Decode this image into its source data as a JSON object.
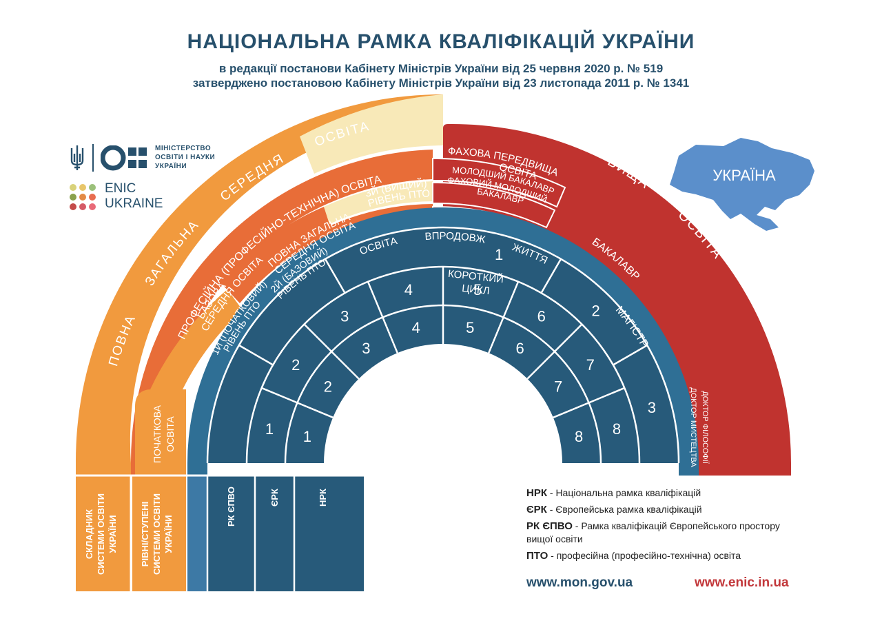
{
  "title": "НАЦІОНАЛЬНА РАМКА КВАЛІФІКАЦІЙ УКРАЇНИ",
  "subtitle1": "в редакції постанови Кабінету Міністрів України від 25 червня 2020 р. № 519",
  "subtitle2": "затверджено постановою Кабінету Міністрів України від 23 листопада 2011 р. № 1341",
  "mon_logo": {
    "line1": "МІНІСТЕРСТВО",
    "line2": "ОСВІТИ І НАУКИ",
    "line3": "УКРАЇНИ",
    "icon": "trident-icon"
  },
  "enic_logo": {
    "line1": "ENIC",
    "line2": "UKRAINE"
  },
  "map_label": "УКРАЇНА",
  "colors": {
    "orange_light": "#f19a3e",
    "orange_dark": "#e86d38",
    "cream": "#f8e9b8",
    "red": "#c0332f",
    "navy": "#275a7a",
    "navy_cell": "#275a7a",
    "band_blue": "#2f6f95",
    "map_blue": "#5b8fcb",
    "text_dark": "#27506c"
  },
  "arc_labels": {
    "general_secondary": {
      "w1": "ПОВНА",
      "w2": "ЗАГАЛЬНА",
      "w3": "СЕРЕДНЯ",
      "w4": "ОСВІТА"
    },
    "vocational": "ПРОФЕСІЙНА (ПРОФЕСІЙНО-ТЕХНІЧНА) ОСВІТА",
    "primary": {
      "l1": "ПОЧАТКОВА",
      "l2": "ОСВІТА"
    },
    "basic_secondary": {
      "l1": "БАЗОВА",
      "l2": "СЕРЕДНЯ ОСВІТА"
    },
    "pto1": {
      "l1": "1Й (ПОЧАТКОВИЙ)",
      "l2": "РІВЕНЬ ПТО"
    },
    "full_general": {
      "l1": "ПОВНА ЗАГАЛЬНА",
      "l2": "СЕРЕДНЯ ОСВІТА"
    },
    "pto2": {
      "l1": "2Й (БАЗОВИЙ)",
      "l2": "РІВЕНЬ ПТО"
    },
    "pto3": {
      "l1": "3Й  (ВИЩИЙ)",
      "l2": "РІВЕНЬ  ПТО"
    },
    "prof_pre_higher": {
      "l1": "ФАХОВА ПЕРЕДВИЩА",
      "l2": "ОСВІТА"
    },
    "junior_bachelor": "МОЛОДШИЙ БАКАЛАВР",
    "prof_junior_bachelor": {
      "l1": "ФАХОВИЙ МОЛОДШИЙ",
      "l2": "БАКАЛАВР"
    },
    "higher": {
      "w1": "ВИЩА",
      "w2": "ОСВІТА"
    },
    "bachelor": "БАКАЛАВР",
    "master": "МАГІСТР",
    "doctor_philosophy": "ДОКТОР ФІЛОСОФІЇ",
    "doctor_arts": "ДОКТОР МИСТЕЦТВА",
    "lifelong": {
      "w1": "ОСВІТА",
      "w2": "ВПРОДОВЖ",
      "w3": "ЖИТТЯ"
    },
    "short_cycle": {
      "l1": "КОРОТКИЙ",
      "l2": "ЦИКЛ"
    }
  },
  "levels": {
    "rk_epvo": [
      "1",
      "2",
      "3"
    ],
    "erk": [
      "1",
      "2",
      "3",
      "4",
      "5",
      "6",
      "7",
      "8"
    ],
    "nrk": [
      "1",
      "2",
      "3",
      "4",
      "5",
      "6",
      "7",
      "8"
    ]
  },
  "column_labels": {
    "components": {
      "l1": "СКЛАДНИК",
      "l2": "СИСТЕМИ ОСВІТИ",
      "l3": "УКРАЇНИ"
    },
    "levels_stages": {
      "l1": "РІВНІ/СТУПЕНІ",
      "l2": "СИСТЕМИ ОСВІТИ",
      "l3": "УКРАЇНИ"
    },
    "rk_epvo": "РК ЄПВО",
    "erk": "ЄРК",
    "nrk": "НРК"
  },
  "legend": [
    {
      "abbr": "НРК",
      "text": " - Національна рамка кваліфікацій"
    },
    {
      "abbr": "ЄРК",
      "text": " - Європейська рамка кваліфікацій"
    },
    {
      "abbr": "РК ЄПВО",
      "text": " - Рамка кваліфікацій Європейського простору вищої освіти"
    },
    {
      "abbr": "ПТО",
      "text": " -  професійна (професійно-технічна) освіта"
    }
  ],
  "urls": {
    "mon": "www.mon.gov.ua",
    "enic": "www.enic.in.ua"
  }
}
